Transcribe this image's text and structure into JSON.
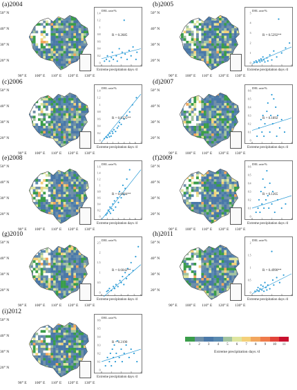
{
  "panels": [
    {
      "title": "(a)2004",
      "r": "R = 0.2685",
      "ymax": 1.4,
      "yticks": [
        "1.4",
        "1.2",
        "1",
        "0.8",
        "0.6",
        "0.4",
        "0.2",
        "0"
      ],
      "xmax": 4,
      "xticks": [
        "0",
        "1",
        "2",
        "3",
        "4"
      ],
      "points": [
        [
          0.3,
          0.05
        ],
        [
          0.5,
          0.1
        ],
        [
          0.6,
          0.2
        ],
        [
          0.8,
          0.05
        ],
        [
          1.0,
          0.15
        ],
        [
          1.1,
          0.3
        ],
        [
          1.2,
          0.1
        ],
        [
          1.5,
          0.2
        ],
        [
          1.6,
          0.05
        ],
        [
          1.8,
          0.4
        ],
        [
          2.0,
          0.15
        ],
        [
          2.1,
          0.3
        ],
        [
          2.3,
          1.2
        ],
        [
          2.4,
          0.25
        ],
        [
          2.6,
          0.1
        ],
        [
          2.8,
          0.35
        ],
        [
          3.0,
          0.2
        ],
        [
          3.2,
          0.45
        ],
        [
          3.5,
          0.1
        ],
        [
          3.6,
          0.3
        ]
      ],
      "fit": [
        [
          0,
          0.12
        ],
        [
          4,
          0.4
        ]
      ],
      "rpos": 0.55
    },
    {
      "title": "(b)2005",
      "r": "R = 0.5292**",
      "ymax": 5,
      "yticks": [
        "5",
        "4",
        "3",
        "2",
        "1",
        "0"
      ],
      "xmax": 4,
      "xticks": [
        "0",
        "1",
        "2",
        "3",
        "4"
      ],
      "points": [
        [
          0.2,
          0.1
        ],
        [
          0.4,
          0.2
        ],
        [
          0.5,
          0.05
        ],
        [
          0.7,
          0.3
        ],
        [
          0.8,
          0.1
        ],
        [
          0.9,
          0.4
        ],
        [
          1.0,
          0.2
        ],
        [
          1.1,
          0.6
        ],
        [
          1.2,
          0.3
        ],
        [
          1.3,
          0.1
        ],
        [
          1.5,
          0.5
        ],
        [
          1.6,
          0.2
        ],
        [
          1.8,
          0.8
        ],
        [
          2.0,
          0.3
        ],
        [
          2.2,
          1.2
        ],
        [
          2.5,
          0.6
        ],
        [
          2.7,
          4.4
        ],
        [
          3.0,
          1.0
        ],
        [
          3.4,
          1.5
        ],
        [
          3.8,
          2.0
        ]
      ],
      "fit": [
        [
          0,
          -0.1
        ],
        [
          4,
          1.6
        ]
      ],
      "rpos": 0.55
    },
    {
      "title": "(c)2006",
      "r": "R = 0.8125**",
      "ymax": 1.4,
      "yticks": [
        "1.4",
        "1.2",
        "1",
        "0.8",
        "0.6",
        "0.4",
        "0.2",
        "0"
      ],
      "xmax": 7,
      "xticks": [
        "0",
        "1",
        "2",
        "3",
        "4",
        "5",
        "6",
        "7"
      ],
      "points": [
        [
          0.5,
          0.05
        ],
        [
          0.8,
          0.1
        ],
        [
          1.0,
          0.08
        ],
        [
          1.2,
          0.15
        ],
        [
          1.4,
          0.1
        ],
        [
          1.5,
          0.2
        ],
        [
          1.7,
          0.12
        ],
        [
          1.9,
          0.25
        ],
        [
          2.0,
          0.2
        ],
        [
          2.2,
          0.3
        ],
        [
          2.5,
          0.25
        ],
        [
          2.8,
          0.35
        ],
        [
          3.0,
          0.4
        ],
        [
          3.2,
          0.5
        ],
        [
          3.5,
          0.45
        ],
        [
          4.0,
          0.6
        ],
        [
          4.5,
          0.7
        ],
        [
          5.0,
          0.8
        ],
        [
          5.5,
          1.0
        ],
        [
          6.2,
          1.2
        ]
      ],
      "fit": [
        [
          0,
          -0.05
        ],
        [
          7,
          1.3
        ]
      ],
      "rpos": 0.45
    },
    {
      "title": "(d)2007",
      "r": "R = 0.1892",
      "ymax": 0.6,
      "yticks": [
        "0.6",
        "0.5",
        "0.4",
        "0.3",
        "0.2",
        "0.1",
        "0"
      ],
      "xmax": 4,
      "xticks": [
        "0",
        "1",
        "2",
        "3",
        "4"
      ],
      "points": [
        [
          0.5,
          0.05
        ],
        [
          0.7,
          0.15
        ],
        [
          0.9,
          0.25
        ],
        [
          1.0,
          0.1
        ],
        [
          1.1,
          0.3
        ],
        [
          1.2,
          0.05
        ],
        [
          1.3,
          0.2
        ],
        [
          1.5,
          0.35
        ],
        [
          1.6,
          0.45
        ],
        [
          1.8,
          0.1
        ],
        [
          1.9,
          0.3
        ],
        [
          2.0,
          0.55
        ],
        [
          2.1,
          0.2
        ],
        [
          2.2,
          0.5
        ],
        [
          2.4,
          0.4
        ],
        [
          2.5,
          0.05
        ],
        [
          2.6,
          0.3
        ],
        [
          2.8,
          0.15
        ],
        [
          3.0,
          0.25
        ],
        [
          3.3,
          0.1
        ]
      ],
      "fit": [
        [
          0,
          0.12
        ],
        [
          4,
          0.27
        ]
      ],
      "rpos": 0.45
    },
    {
      "title": "(e)2008",
      "r": "R = 0.6004**",
      "ymax": 1.6,
      "yticks": [
        "1.6",
        "1.4",
        "1.2",
        "1",
        "0.8",
        "0.6",
        "0.4",
        "0.2",
        "0"
      ],
      "xmax": 7,
      "xticks": [
        "0",
        "1",
        "2",
        "3",
        "4",
        "5",
        "6",
        "7"
      ],
      "points": [
        [
          0.8,
          0.05
        ],
        [
          1.0,
          0.1
        ],
        [
          1.2,
          0.2
        ],
        [
          1.4,
          0.15
        ],
        [
          1.5,
          0.3
        ],
        [
          1.6,
          0.1
        ],
        [
          1.8,
          0.25
        ],
        [
          2.0,
          0.4
        ],
        [
          2.1,
          0.2
        ],
        [
          2.3,
          0.5
        ],
        [
          2.5,
          0.3
        ],
        [
          2.8,
          0.6
        ],
        [
          3.0,
          0.45
        ],
        [
          3.2,
          0.8
        ],
        [
          3.5,
          0.6
        ],
        [
          3.8,
          1.0
        ],
        [
          4.0,
          0.7
        ],
        [
          4.2,
          0.9
        ],
        [
          4.5,
          1.2
        ],
        [
          5.0,
          1.5
        ]
      ],
      "fit": [
        [
          0,
          -0.1
        ],
        [
          7,
          1.5
        ]
      ],
      "rpos": 0.45
    },
    {
      "title": "(f)2009",
      "r": "R = 0.1265",
      "ymax": 0.6,
      "yticks": [
        "0.6",
        "0.5",
        "0.4",
        "0.3",
        "0.2",
        "0.1",
        "0"
      ],
      "xmax": 4,
      "xticks": [
        "0",
        "1",
        "2",
        "3",
        "4"
      ],
      "points": [
        [
          0.4,
          0.05
        ],
        [
          0.6,
          0.1
        ],
        [
          0.7,
          0.2
        ],
        [
          0.8,
          0.05
        ],
        [
          0.9,
          0.3
        ],
        [
          1.0,
          0.15
        ],
        [
          1.1,
          0.45
        ],
        [
          1.2,
          0.1
        ],
        [
          1.3,
          0.35
        ],
        [
          1.4,
          0.2
        ],
        [
          1.5,
          0.55
        ],
        [
          1.6,
          0.25
        ],
        [
          1.7,
          0.1
        ],
        [
          1.8,
          0.4
        ],
        [
          2.0,
          0.15
        ],
        [
          2.1,
          0.3
        ],
        [
          2.3,
          0.05
        ],
        [
          2.6,
          0.2
        ],
        [
          3.0,
          0.1
        ],
        [
          3.4,
          0.15
        ]
      ],
      "fit": [
        [
          0,
          0.1
        ],
        [
          4,
          0.25
        ]
      ],
      "rpos": 0.45
    },
    {
      "title": "(g)2010",
      "r": "R = 0.6042**",
      "ymax": 2.5,
      "yticks": [
        "2.5",
        "2",
        "1.5",
        "1",
        "0.5",
        "0"
      ],
      "xmax": 6,
      "xticks": [
        "0",
        "1",
        "2",
        "3",
        "4",
        "5",
        "6"
      ],
      "points": [
        [
          0.8,
          0.05
        ],
        [
          1.0,
          0.1
        ],
        [
          1.2,
          0.2
        ],
        [
          1.5,
          0.1
        ],
        [
          1.8,
          0.3
        ],
        [
          2.0,
          0.2
        ],
        [
          2.2,
          0.4
        ],
        [
          2.5,
          0.3
        ],
        [
          2.8,
          0.6
        ],
        [
          3.0,
          0.5
        ],
        [
          3.2,
          0.8
        ],
        [
          3.4,
          0.4
        ],
        [
          3.6,
          1.0
        ],
        [
          3.8,
          0.7
        ],
        [
          4.0,
          1.2
        ],
        [
          4.2,
          0.9
        ],
        [
          4.5,
          1.5
        ],
        [
          4.8,
          1.1
        ],
        [
          5.2,
          1.8
        ],
        [
          5.6,
          2.3
        ]
      ],
      "fit": [
        [
          0,
          -0.3
        ],
        [
          6,
          1.4
        ]
      ],
      "rpos": 0.45
    },
    {
      "title": "(h)2011",
      "r": "R = 0.4990**",
      "ymax": 2,
      "yticks": [
        "2",
        "1.5",
        "1",
        "0.5",
        "0"
      ],
      "xmax": 4,
      "xticks": [
        "0",
        "1",
        "2",
        "3",
        "4"
      ],
      "points": [
        [
          0.3,
          0.05
        ],
        [
          0.5,
          0.1
        ],
        [
          0.6,
          0.2
        ],
        [
          0.7,
          0.05
        ],
        [
          0.8,
          0.15
        ],
        [
          0.9,
          0.3
        ],
        [
          1.0,
          0.1
        ],
        [
          1.1,
          0.25
        ],
        [
          1.2,
          0.05
        ],
        [
          1.3,
          0.4
        ],
        [
          1.4,
          0.2
        ],
        [
          1.5,
          0.1
        ],
        [
          1.6,
          0.3
        ],
        [
          1.8,
          0.15
        ],
        [
          2.0,
          1.65
        ],
        [
          2.1,
          0.5
        ],
        [
          2.2,
          0.3
        ],
        [
          2.5,
          0.6
        ],
        [
          2.8,
          0.4
        ],
        [
          3.2,
          0.7
        ]
      ],
      "fit": [
        [
          0,
          -0.05
        ],
        [
          4,
          0.75
        ]
      ],
      "rpos": 0.45
    },
    {
      "title": "(i)2012",
      "r": "R = 0.2190",
      "ymax": 0.6,
      "yticks": [
        "0.6",
        "0.5",
        "0.4",
        "0.3",
        "0.2",
        "0.1",
        "0"
      ],
      "xmax": 4,
      "xticks": [
        "0",
        "1",
        "2",
        "3",
        "4"
      ],
      "points": [
        [
          0.4,
          0.05
        ],
        [
          0.6,
          0.15
        ],
        [
          0.8,
          0.1
        ],
        [
          0.9,
          0.2
        ],
        [
          1.0,
          0.05
        ],
        [
          1.1,
          0.25
        ],
        [
          1.2,
          0.15
        ],
        [
          1.3,
          0.3
        ],
        [
          1.4,
          0.1
        ],
        [
          1.5,
          0.2
        ],
        [
          1.6,
          0.35
        ],
        [
          1.8,
          0.15
        ],
        [
          2.0,
          0.25
        ],
        [
          2.1,
          0.1
        ],
        [
          2.3,
          0.2
        ],
        [
          2.5,
          0.3
        ],
        [
          2.8,
          0.15
        ],
        [
          3.0,
          0.25
        ],
        [
          3.3,
          0.2
        ],
        [
          3.6,
          0.1
        ]
      ],
      "fit": [
        [
          0,
          0.1
        ],
        [
          4,
          0.25
        ]
      ],
      "rpos": 0.55
    }
  ],
  "common": {
    "ylabel": "DEL rate/%",
    "xlabel": "Extreme precipitation days /d",
    "lat_labels": [
      "50° N",
      "40° N",
      "30° N",
      "20° N"
    ],
    "lon_labels": [
      "90° E",
      "100° E",
      "110° E",
      "120° E",
      "130° E"
    ]
  },
  "legend": {
    "title": "Extreme precipitation days /d",
    "ticks": [
      "1",
      "2",
      "3",
      "4",
      "5",
      "6",
      "7",
      "8",
      "9",
      "10",
      "11"
    ],
    "colors": [
      "#3a9d4a",
      "#6f8fa8",
      "#4a78a8",
      "#5a8ab0",
      "#a3c4a0",
      "#dfe6a0",
      "#f4d07a",
      "#f2a65e",
      "#ef7a4a",
      "#e2453a",
      "#c8102e"
    ]
  },
  "colors": {
    "point": "#2a9bd6",
    "fit": "#2a9bd6",
    "water": "#3d6ea0",
    "nodata": "#ffffff"
  }
}
